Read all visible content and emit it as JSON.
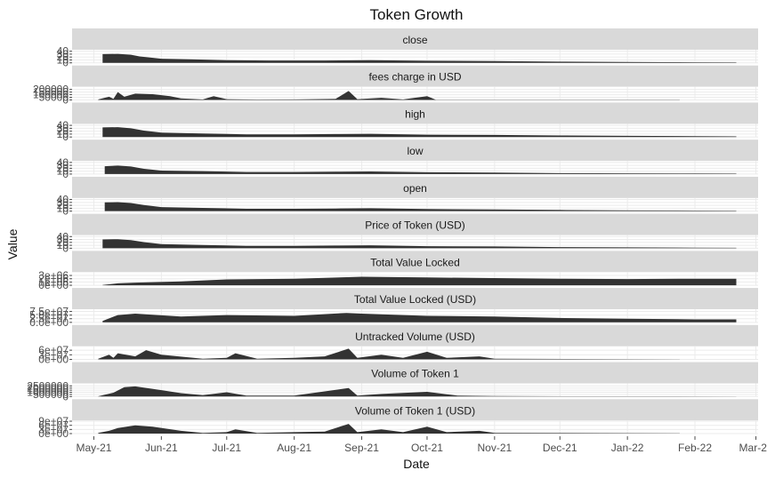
{
  "chart_data": {
    "type": "area",
    "title": "Token Growth",
    "xlabel": "Date",
    "ylabel": "Value",
    "xlim": [
      "2021-04-21",
      "2022-03-02"
    ],
    "x_ticks": [
      "2021-05-01",
      "2021-06-01",
      "2021-07-01",
      "2021-08-01",
      "2021-09-01",
      "2021-10-01",
      "2021-11-01",
      "2021-12-01",
      "2022-01-01",
      "2022-02-01",
      "2022-03-01"
    ],
    "x_tick_labels": [
      "May-21",
      "Jun-21",
      "Jul-21",
      "Aug-21",
      "Sep-21",
      "Oct-21",
      "Nov-21",
      "Dec-21",
      "Jan-22",
      "Feb-22",
      "Mar-22"
    ],
    "grid": true,
    "facet_layout": "stacked rows, shared x axis, free y scales",
    "colors": {
      "fill": "#333333",
      "strip": "#d9d9d9",
      "grid": "#ebebeb"
    },
    "panels": [
      {
        "name": "close",
        "ylim": [
          0,
          45
        ],
        "y_ticks": [
          0,
          10,
          20,
          30,
          40
        ],
        "y_tick_labels": [
          "0",
          "10",
          "20",
          "30",
          "40"
        ],
        "points": [
          [
            "2021-05-05",
            30
          ],
          [
            "2021-05-12",
            31
          ],
          [
            "2021-05-18",
            28
          ],
          [
            "2021-05-22",
            22
          ],
          [
            "2021-06-01",
            14
          ],
          [
            "2021-06-15",
            12
          ],
          [
            "2021-07-01",
            9
          ],
          [
            "2021-07-20",
            8
          ],
          [
            "2021-08-15",
            8
          ],
          [
            "2021-09-05",
            9
          ],
          [
            "2021-10-01",
            7
          ],
          [
            "2021-11-01",
            6
          ],
          [
            "2021-12-01",
            4
          ],
          [
            "2022-01-01",
            3
          ],
          [
            "2022-02-01",
            2
          ],
          [
            "2022-02-20",
            1.5
          ]
        ]
      },
      {
        "name": "fees charge in USD",
        "ylim": [
          0,
          250000
        ],
        "y_ticks": [
          0,
          50000,
          100000,
          150000,
          200000
        ],
        "y_tick_labels": [
          "0",
          "50000",
          "100000",
          "150000",
          "200000"
        ],
        "points": [
          [
            "2021-05-03",
            10000
          ],
          [
            "2021-05-08",
            60000
          ],
          [
            "2021-05-10",
            20000
          ],
          [
            "2021-05-12",
            150000
          ],
          [
            "2021-05-15",
            60000
          ],
          [
            "2021-05-20",
            120000
          ],
          [
            "2021-05-28",
            110000
          ],
          [
            "2021-06-05",
            70000
          ],
          [
            "2021-06-10",
            30000
          ],
          [
            "2021-06-20",
            10000
          ],
          [
            "2021-06-25",
            70000
          ],
          [
            "2021-07-01",
            15000
          ],
          [
            "2021-07-15",
            8000
          ],
          [
            "2021-08-01",
            10000
          ],
          [
            "2021-08-20",
            20000
          ],
          [
            "2021-08-26",
            170000
          ],
          [
            "2021-08-30",
            15000
          ],
          [
            "2021-09-10",
            40000
          ],
          [
            "2021-09-20",
            10000
          ],
          [
            "2021-10-01",
            70000
          ],
          [
            "2021-10-05",
            5000
          ],
          [
            "2021-11-01",
            5000
          ],
          [
            "2022-01-25",
            2000
          ]
        ]
      },
      {
        "name": "high",
        "ylim": [
          0,
          45
        ],
        "y_ticks": [
          0,
          10,
          20,
          30,
          40
        ],
        "y_tick_labels": [
          "0",
          "10",
          "20",
          "30",
          "40"
        ],
        "points": [
          [
            "2021-05-05",
            33
          ],
          [
            "2021-05-12",
            34
          ],
          [
            "2021-05-18",
            30
          ],
          [
            "2021-05-24",
            22
          ],
          [
            "2021-06-01",
            15
          ],
          [
            "2021-06-20",
            12
          ],
          [
            "2021-07-10",
            9
          ],
          [
            "2021-08-01",
            9
          ],
          [
            "2021-08-20",
            10
          ],
          [
            "2021-09-05",
            11
          ],
          [
            "2021-10-01",
            8
          ],
          [
            "2021-11-01",
            7
          ],
          [
            "2021-12-01",
            5
          ],
          [
            "2022-01-01",
            4
          ],
          [
            "2022-02-01",
            3
          ],
          [
            "2022-02-20",
            2
          ]
        ]
      },
      {
        "name": "low",
        "ylim": [
          0,
          45
        ],
        "y_ticks": [
          0,
          10,
          20,
          30,
          40
        ],
        "y_tick_labels": [
          "0",
          "10",
          "20",
          "30",
          "40"
        ],
        "points": [
          [
            "2021-05-06",
            27
          ],
          [
            "2021-05-12",
            29
          ],
          [
            "2021-05-18",
            26
          ],
          [
            "2021-05-24",
            18
          ],
          [
            "2021-06-01",
            12
          ],
          [
            "2021-06-20",
            10
          ],
          [
            "2021-07-10",
            7
          ],
          [
            "2021-08-01",
            7
          ],
          [
            "2021-08-20",
            8
          ],
          [
            "2021-09-05",
            9
          ],
          [
            "2021-10-01",
            6
          ],
          [
            "2021-11-01",
            5
          ],
          [
            "2021-12-01",
            3
          ],
          [
            "2022-01-01",
            2.5
          ],
          [
            "2022-02-01",
            2
          ],
          [
            "2022-02-20",
            1.5
          ]
        ]
      },
      {
        "name": "open",
        "ylim": [
          0,
          45
        ],
        "y_ticks": [
          0,
          10,
          20,
          30,
          40
        ],
        "y_tick_labels": [
          "0",
          "10",
          "20",
          "30",
          "40"
        ],
        "points": [
          [
            "2021-05-06",
            30
          ],
          [
            "2021-05-12",
            31
          ],
          [
            "2021-05-18",
            28
          ],
          [
            "2021-05-24",
            21
          ],
          [
            "2021-06-01",
            14
          ],
          [
            "2021-06-20",
            11
          ],
          [
            "2021-07-10",
            8
          ],
          [
            "2021-08-01",
            8
          ],
          [
            "2021-08-20",
            9
          ],
          [
            "2021-09-05",
            10
          ],
          [
            "2021-10-01",
            7
          ],
          [
            "2021-11-01",
            6
          ],
          [
            "2021-12-01",
            4
          ],
          [
            "2022-01-01",
            3
          ],
          [
            "2022-02-01",
            2
          ],
          [
            "2022-02-20",
            1.5
          ]
        ]
      },
      {
        "name": "Price of Token (USD)",
        "ylim": [
          0,
          45
        ],
        "y_ticks": [
          0,
          10,
          20,
          30,
          40
        ],
        "y_tick_labels": [
          "0",
          "10",
          "20",
          "30",
          "40"
        ],
        "points": [
          [
            "2021-05-05",
            30
          ],
          [
            "2021-05-12",
            31
          ],
          [
            "2021-05-18",
            28
          ],
          [
            "2021-05-24",
            21
          ],
          [
            "2021-06-01",
            14
          ],
          [
            "2021-06-20",
            11
          ],
          [
            "2021-07-10",
            8
          ],
          [
            "2021-08-01",
            8
          ],
          [
            "2021-08-20",
            9
          ],
          [
            "2021-09-05",
            10
          ],
          [
            "2021-10-01",
            7
          ],
          [
            "2021-11-01",
            6
          ],
          [
            "2021-12-01",
            4
          ],
          [
            "2022-01-01",
            3
          ],
          [
            "2022-02-01",
            2
          ],
          [
            "2022-02-20",
            1.5
          ]
        ]
      },
      {
        "name": "Total Value Locked",
        "ylim": [
          0,
          4000000
        ],
        "y_ticks": [
          0,
          1000000,
          2000000,
          3000000
        ],
        "y_tick_labels": [
          "0e+00",
          "1e+06",
          "2e+06",
          "3e+06"
        ],
        "points": [
          [
            "2021-05-05",
            100000
          ],
          [
            "2021-05-12",
            600000
          ],
          [
            "2021-05-20",
            800000
          ],
          [
            "2021-06-10",
            1200000
          ],
          [
            "2021-07-01",
            1800000
          ],
          [
            "2021-08-01",
            2000000
          ],
          [
            "2021-09-01",
            2600000
          ],
          [
            "2021-10-01",
            2400000
          ],
          [
            "2021-11-01",
            2200000
          ],
          [
            "2021-12-01",
            2000000
          ],
          [
            "2022-01-01",
            1900000
          ],
          [
            "2022-02-01",
            2000000
          ],
          [
            "2022-02-20",
            2000000
          ]
        ]
      },
      {
        "name": "Total Value Locked (USD)",
        "ylim": [
          0,
          90000000
        ],
        "y_ticks": [
          0,
          25000000,
          50000000,
          75000000
        ],
        "y_tick_labels": [
          "0.0e+00",
          "2.5e+07",
          "5.0e+07",
          "7.5e+07"
        ],
        "points": [
          [
            "2021-05-05",
            10000000
          ],
          [
            "2021-05-12",
            50000000
          ],
          [
            "2021-05-20",
            60000000
          ],
          [
            "2021-06-10",
            40000000
          ],
          [
            "2021-07-01",
            50000000
          ],
          [
            "2021-08-01",
            45000000
          ],
          [
            "2021-08-25",
            65000000
          ],
          [
            "2021-09-01",
            60000000
          ],
          [
            "2021-10-01",
            45000000
          ],
          [
            "2021-11-01",
            40000000
          ],
          [
            "2021-12-01",
            30000000
          ],
          [
            "2022-01-01",
            25000000
          ],
          [
            "2022-02-01",
            20000000
          ],
          [
            "2022-02-20",
            20000000
          ]
        ]
      },
      {
        "name": "Untracked Volume (USD)",
        "ylim": [
          0,
          85000000
        ],
        "y_ticks": [
          0,
          30000000,
          60000000
        ],
        "y_tick_labels": [
          "0e+00",
          "3e+07",
          "6e+07"
        ],
        "points": [
          [
            "2021-05-03",
            5000000
          ],
          [
            "2021-05-08",
            30000000
          ],
          [
            "2021-05-10",
            10000000
          ],
          [
            "2021-05-12",
            40000000
          ],
          [
            "2021-05-20",
            20000000
          ],
          [
            "2021-05-25",
            60000000
          ],
          [
            "2021-06-01",
            30000000
          ],
          [
            "2021-06-20",
            5000000
          ],
          [
            "2021-07-01",
            10000000
          ],
          [
            "2021-07-05",
            40000000
          ],
          [
            "2021-07-15",
            5000000
          ],
          [
            "2021-08-01",
            10000000
          ],
          [
            "2021-08-15",
            20000000
          ],
          [
            "2021-08-26",
            70000000
          ],
          [
            "2021-08-30",
            10000000
          ],
          [
            "2021-09-10",
            30000000
          ],
          [
            "2021-09-20",
            10000000
          ],
          [
            "2021-10-01",
            50000000
          ],
          [
            "2021-10-10",
            10000000
          ],
          [
            "2021-10-25",
            20000000
          ],
          [
            "2021-11-01",
            5000000
          ],
          [
            "2022-01-25",
            1000000
          ]
        ]
      },
      {
        "name": "Volume of Token 1",
        "ylim": [
          0,
          3100000
        ],
        "y_ticks": [
          0,
          500000,
          1000000,
          1500000,
          2000000,
          2500000
        ],
        "y_tick_labels": [
          "0",
          "500000",
          "1000000",
          "1500000",
          "2000000",
          "2500000"
        ],
        "points": [
          [
            "2021-05-03",
            50000
          ],
          [
            "2021-05-10",
            900000
          ],
          [
            "2021-05-15",
            2200000
          ],
          [
            "2021-05-20",
            2400000
          ],
          [
            "2021-06-01",
            1500000
          ],
          [
            "2021-06-10",
            800000
          ],
          [
            "2021-06-20",
            300000
          ],
          [
            "2021-07-01",
            1000000
          ],
          [
            "2021-07-10",
            200000
          ],
          [
            "2021-08-01",
            200000
          ],
          [
            "2021-08-26",
            2000000
          ],
          [
            "2021-08-30",
            200000
          ],
          [
            "2021-09-10",
            600000
          ],
          [
            "2021-10-01",
            1100000
          ],
          [
            "2021-10-15",
            200000
          ],
          [
            "2021-11-01",
            100000
          ],
          [
            "2021-12-15",
            50000
          ],
          [
            "2022-01-15",
            50000
          ],
          [
            "2022-02-20",
            30000
          ]
        ]
      },
      {
        "name": "Volume of Token 1 (USD)",
        "ylim": [
          0,
          95000000
        ],
        "y_ticks": [
          0,
          30000000,
          60000000,
          90000000
        ],
        "y_tick_labels": [
          "0e+00",
          "3e+07",
          "6e+07",
          "9e+07"
        ],
        "points": [
          [
            "2021-05-03",
            5000000
          ],
          [
            "2021-05-08",
            20000000
          ],
          [
            "2021-05-12",
            40000000
          ],
          [
            "2021-05-20",
            60000000
          ],
          [
            "2021-05-28",
            50000000
          ],
          [
            "2021-06-10",
            20000000
          ],
          [
            "2021-06-20",
            5000000
          ],
          [
            "2021-07-01",
            10000000
          ],
          [
            "2021-07-05",
            30000000
          ],
          [
            "2021-07-15",
            5000000
          ],
          [
            "2021-08-01",
            10000000
          ],
          [
            "2021-08-15",
            15000000
          ],
          [
            "2021-08-26",
            70000000
          ],
          [
            "2021-08-30",
            10000000
          ],
          [
            "2021-09-10",
            30000000
          ],
          [
            "2021-09-20",
            10000000
          ],
          [
            "2021-10-01",
            50000000
          ],
          [
            "2021-10-10",
            10000000
          ],
          [
            "2021-10-25",
            20000000
          ],
          [
            "2021-11-01",
            5000000
          ],
          [
            "2022-01-25",
            1000000
          ]
        ]
      }
    ]
  }
}
